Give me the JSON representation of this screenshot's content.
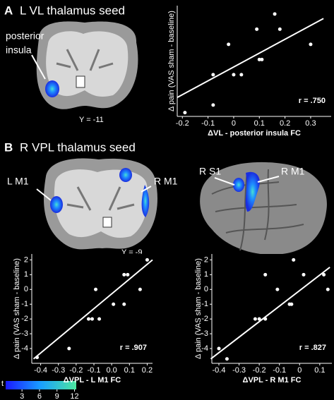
{
  "panels": [
    {
      "letter": "A",
      "title": "L VL thalamus seed"
    },
    {
      "letter": "B",
      "title": "R VPL thalamus seed"
    }
  ],
  "brain_labels": {
    "posterior_insula": [
      "posterior",
      "insula"
    ],
    "slice_a": "Y = -11",
    "l_m1": "L M1",
    "r_m1_coronal": "R M1",
    "slice_b": "Y = -9",
    "r_s1": "R S1",
    "r_m1_surface": "R M1"
  },
  "colorbar": {
    "label": "t",
    "lim": [
      0.2,
      12.3
    ],
    "ticks": [
      3,
      6,
      9,
      12
    ]
  },
  "chart_data": [
    {
      "type": "scatter",
      "x_label": "ΔVL - posterior insula FC",
      "y_label": "Δ pain (VAS sham - baseline)",
      "annotation": "r = .750",
      "color": "#ffffff",
      "x": [
        0.16,
        0.09,
        0.18,
        -0.02,
        0.3,
        -0.08,
        0.0,
        0.03,
        0.1,
        0.11,
        -0.08,
        -0.19
      ],
      "values": [
        2,
        1,
        1,
        0,
        0,
        -2,
        -2,
        -2,
        -1,
        -1,
        -4,
        -4.5
      ],
      "trendline": {
        "x": [
          -0.22,
          0.35
        ],
        "y": [
          -3.5,
          1.7
        ]
      },
      "xlim": [
        -0.22,
        0.38
      ],
      "ylim": [
        -4.75,
        2.55
      ],
      "xticks": [
        -0.2,
        -0.1,
        0,
        0.1,
        0.2,
        0.3
      ]
    },
    {
      "type": "scatter",
      "x_label": "ΔVPL - L M1 FC",
      "y_label": "Δ pain (VAS sham - baseline)",
      "annotation": "r = .907",
      "color": "#ffffff",
      "x": [
        0.2,
        0.07,
        0.09,
        -0.09,
        0.16,
        0.01,
        0.07,
        -0.13,
        -0.11,
        -0.07,
        -0.24,
        -0.42
      ],
      "values": [
        2,
        1,
        1,
        0,
        0,
        -1,
        -1,
        -2,
        -2,
        -2,
        -4,
        -4.6
      ],
      "trendline": {
        "x": [
          -0.44,
          0.23
        ],
        "y": [
          -4.7,
          2
        ]
      },
      "xlim": [
        -0.45,
        0.23
      ],
      "ylim": [
        -5,
        2.4
      ],
      "xticks": [
        -0.4,
        -0.3,
        -0.2,
        -0.1,
        {
          "value": 0,
          "label": "0.0"
        },
        0.1,
        0.2
      ],
      "yticks": [
        2,
        1,
        0,
        -1,
        -2,
        -3,
        -4
      ]
    },
    {
      "type": "scatter",
      "x_label": "ΔVPL - R M1 FC",
      "y_label": "Δ pain (VAS sham - baseline)",
      "annotation": "r = .827",
      "color": "#ffffff",
      "x": [
        -0.03,
        0.02,
        -0.17,
        0.12,
        -0.11,
        0.14,
        -0.05,
        -0.04,
        -0.22,
        -0.2,
        -0.17,
        -0.4,
        -0.36
      ],
      "values": [
        2,
        1,
        1,
        1,
        0,
        0,
        -1,
        -1,
        -2,
        -2,
        -2,
        -4,
        -4.7
      ],
      "trendline": {
        "x": [
          -0.44,
          0.15
        ],
        "y": [
          -4.7,
          1.5
        ]
      },
      "xlim": [
        -0.435,
        0.16
      ],
      "ylim": [
        -5,
        2.4
      ],
      "xticks": [
        -0.4,
        -0.3,
        -0.2,
        -0.1,
        0,
        0.1
      ],
      "yticks": [
        2,
        1,
        0,
        -1,
        -2,
        -3,
        -4
      ]
    }
  ]
}
